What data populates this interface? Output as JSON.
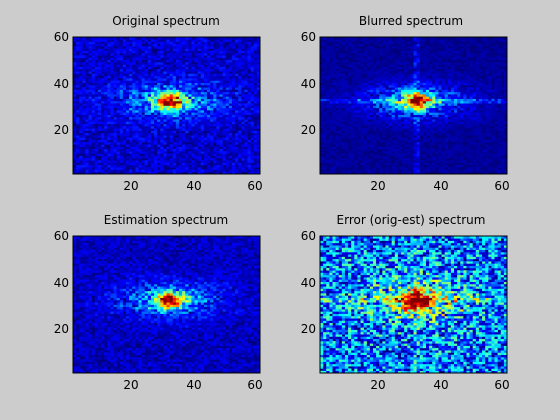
{
  "figure": {
    "background": "#cccccc",
    "colormap": "jet"
  },
  "chart_data": [
    {
      "type": "heatmap",
      "title": "Original spectrum",
      "xlim": [
        0,
        60
      ],
      "ylim": [
        0,
        60
      ],
      "xticks": [
        20,
        40,
        60
      ],
      "yticks": [
        20,
        40,
        60
      ],
      "grid": false,
      "peak": {
        "x": 31,
        "y": 32,
        "value": 1.0
      },
      "background_level": 0.15,
      "cross_artifacts": false
    },
    {
      "type": "heatmap",
      "title": "Blurred spectrum",
      "xlim": [
        0,
        60
      ],
      "ylim": [
        0,
        60
      ],
      "xticks": [
        20,
        40,
        60
      ],
      "yticks": [
        20,
        40,
        60
      ],
      "grid": false,
      "peak": {
        "x": 31,
        "y": 32,
        "value": 1.0
      },
      "background_level": 0.05,
      "cross_artifacts": true
    },
    {
      "type": "heatmap",
      "title": "Estimation spectrum",
      "xlim": [
        0,
        60
      ],
      "ylim": [
        0,
        60
      ],
      "xticks": [
        20,
        40,
        60
      ],
      "yticks": [
        20,
        40,
        60
      ],
      "grid": false,
      "peak": {
        "x": 31,
        "y": 32,
        "value": 1.0
      },
      "background_level": 0.12,
      "cross_artifacts": false
    },
    {
      "type": "heatmap",
      "title": "Error (orig-est) spectrum",
      "xlim": [
        0,
        60
      ],
      "ylim": [
        0,
        60
      ],
      "xticks": [
        20,
        40,
        60
      ],
      "yticks": [
        20,
        40,
        60
      ],
      "grid": false,
      "peak": {
        "x": 31,
        "y": 32,
        "value": 0.85
      },
      "background_level": 0.35,
      "cross_artifacts": true
    }
  ]
}
